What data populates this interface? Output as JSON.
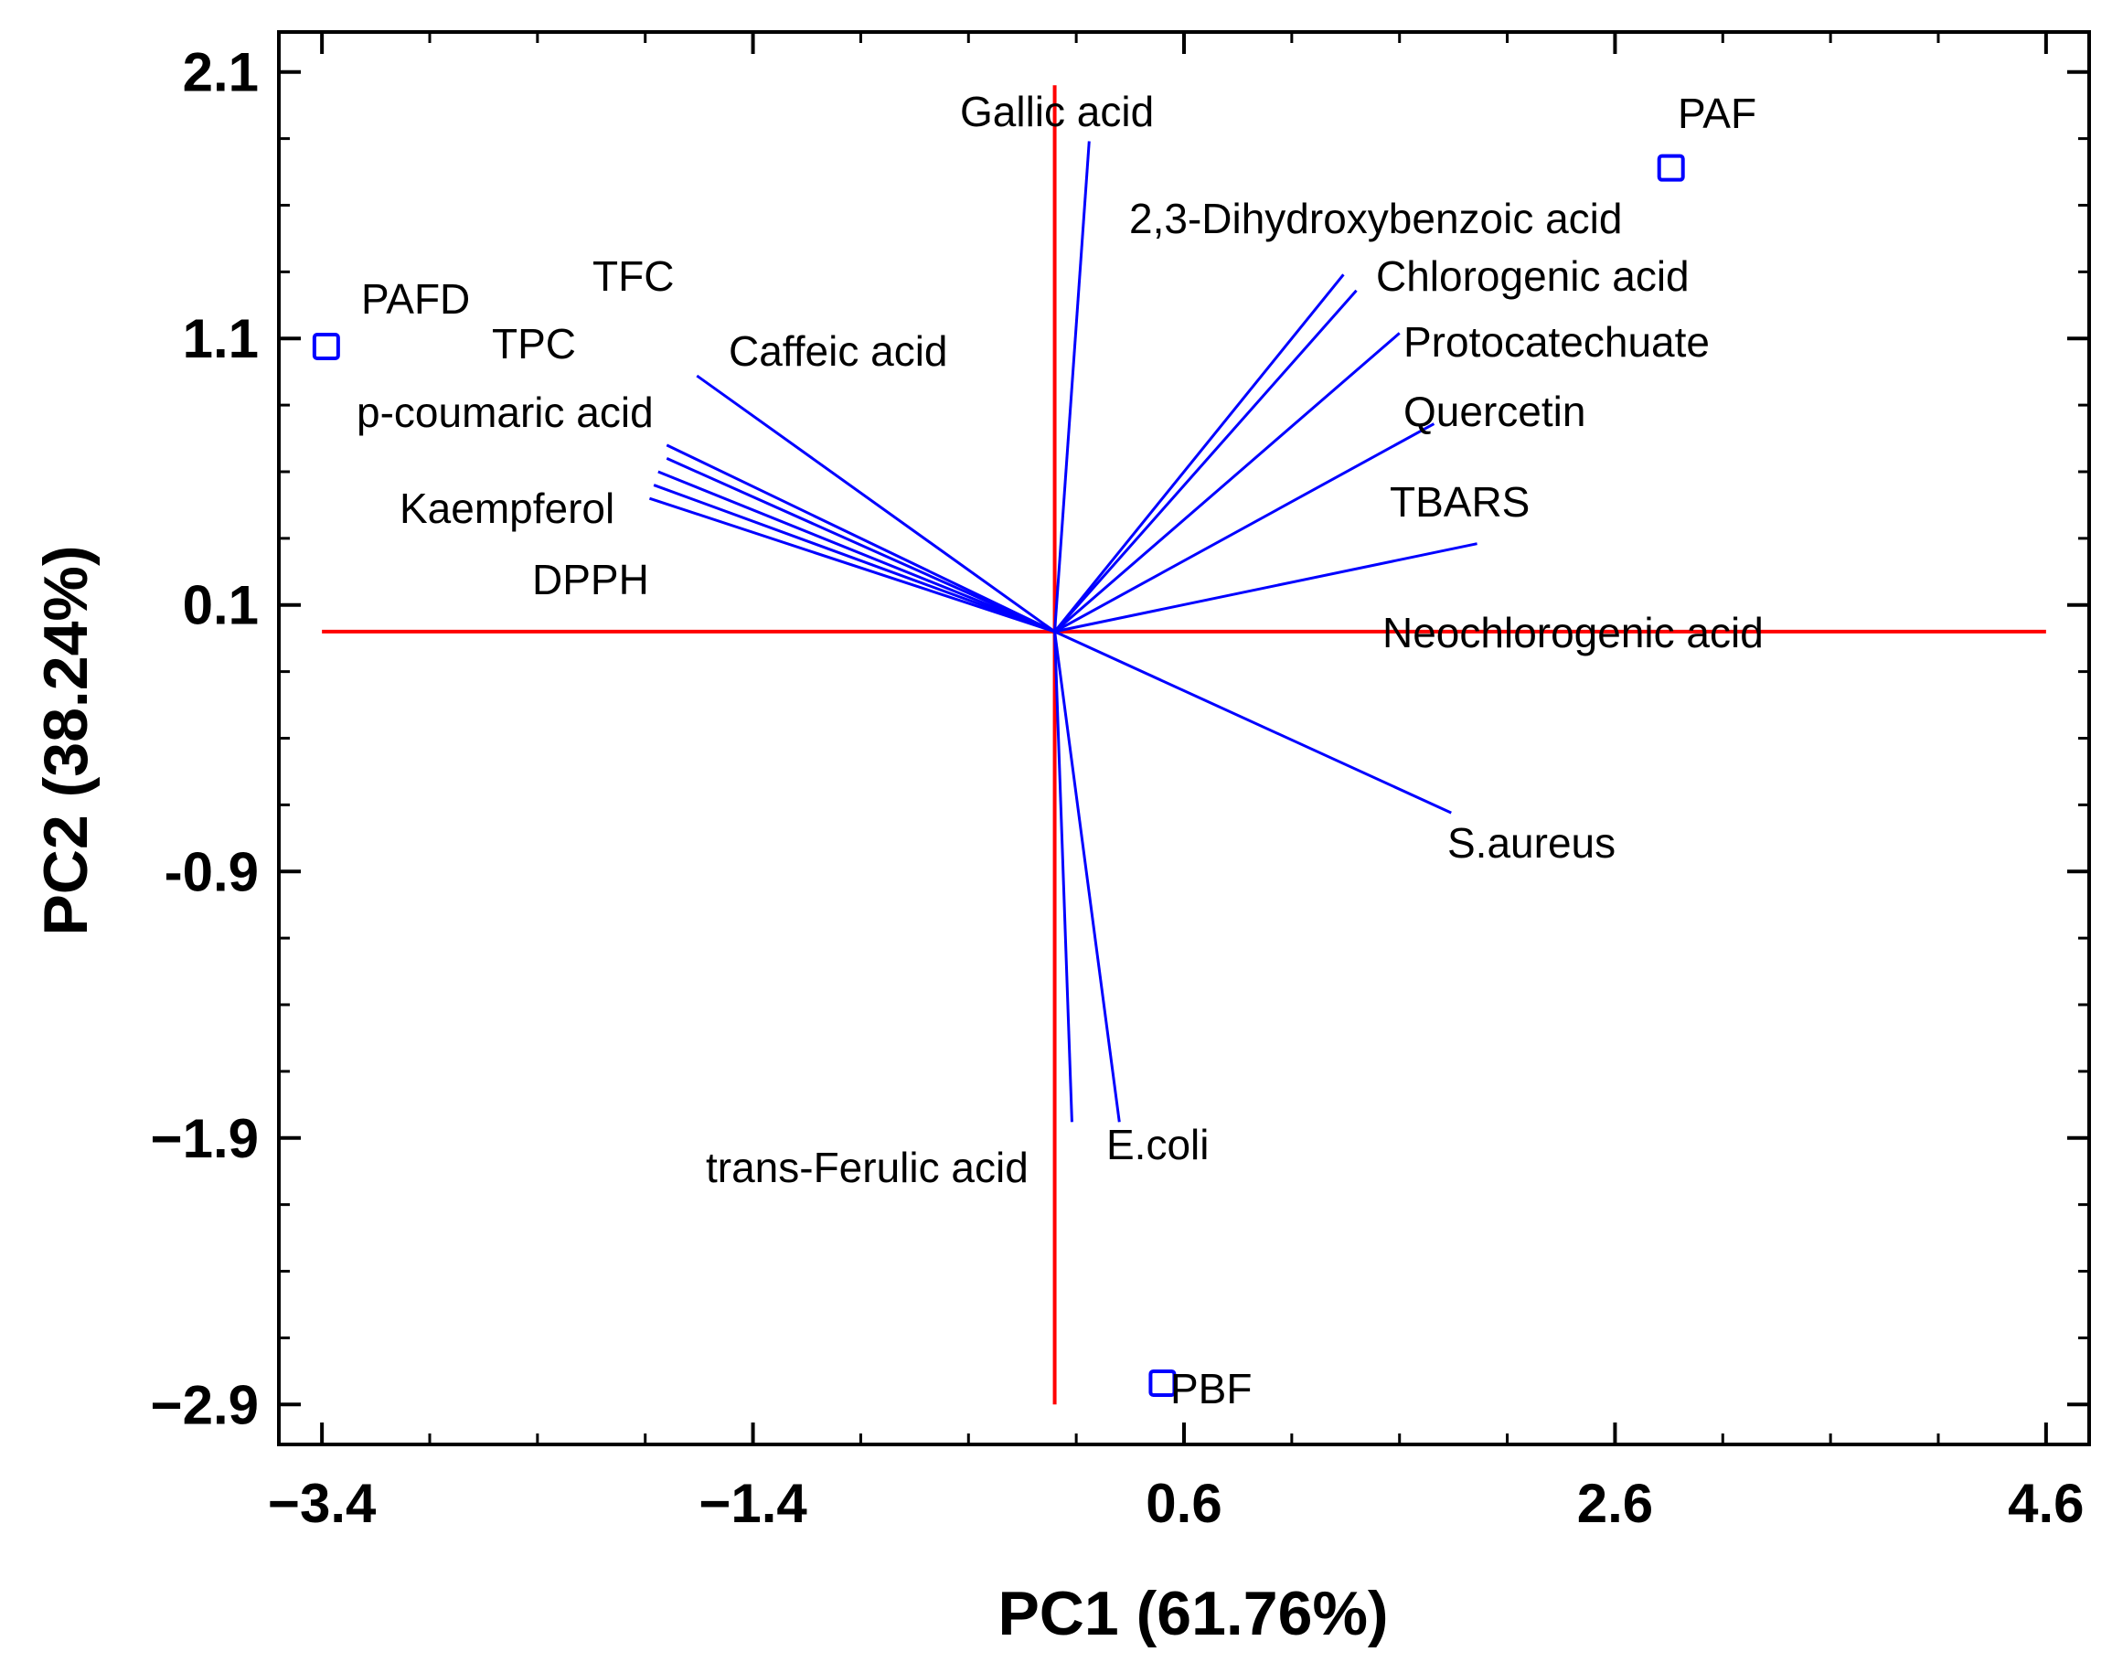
{
  "chart_data": {
    "type": "scatter",
    "subtype": "pca-biplot",
    "xlabel": "PC1 (61.76%)",
    "ylabel": "PC2 (38.24%)",
    "xlim": [
      -3.6,
      4.8
    ],
    "ylim": [
      -3.05,
      2.25
    ],
    "xticks": [
      -3.4,
      -1.4,
      0.6,
      2.6,
      4.6
    ],
    "xtick_labels": [
      "−3.4",
      "−1.4",
      "0.6",
      "2.6",
      "4.6"
    ],
    "yticks": [
      2.1,
      1.1,
      0.1,
      -0.9,
      -1.9,
      -2.9
    ],
    "ytick_labels": [
      "2.1",
      "1.1",
      "0.1",
      "-0.9",
      "−1.9",
      "−2.9"
    ],
    "reference_lines": {
      "color": "#ff0000",
      "x_range": [
        -3.4,
        4.6
      ],
      "y_range": [
        -2.9,
        2.05
      ]
    },
    "vector_color": "#0000ff",
    "observations": [
      {
        "name": "PAFD",
        "x": -3.38,
        "y": 1.07
      },
      {
        "name": "PAF",
        "x": 2.86,
        "y": 1.74
      },
      {
        "name": "PBF",
        "x": 0.5,
        "y": -2.82
      }
    ],
    "loadings": [
      {
        "name": "Gallic acid",
        "x": 0.16,
        "y": 1.84
      },
      {
        "name": "2,3-Dihydroxybenzoic acid",
        "x": 1.34,
        "y": 1.34
      },
      {
        "name": "Chlorogenic acid",
        "x": 1.4,
        "y": 1.28
      },
      {
        "name": "Protocatechuate",
        "x": 1.6,
        "y": 1.12
      },
      {
        "name": "Quercetin",
        "x": 1.76,
        "y": 0.78
      },
      {
        "name": "TBARS",
        "x": 1.96,
        "y": 0.33
      },
      {
        "name": "Neochlorogenic acid",
        "x": 0.0,
        "y": 0.0
      },
      {
        "name": "S.aureus",
        "x": 1.84,
        "y": -0.68
      },
      {
        "name": "E.coli",
        "x": 0.3,
        "y": -1.84
      },
      {
        "name": "trans-Ferulic acid",
        "x": 0.08,
        "y": -1.84
      },
      {
        "name": "Caffeic acid",
        "x": -1.66,
        "y": 0.96
      },
      {
        "name": "TFC",
        "x": -1.8,
        "y": 0.7
      },
      {
        "name": "TPC",
        "x": -1.8,
        "y": 0.65
      },
      {
        "name": "p-coumaric acid",
        "x": -1.84,
        "y": 0.6
      },
      {
        "name": "Kaempferol",
        "x": -1.86,
        "y": 0.55
      },
      {
        "name": "DPPH",
        "x": -1.88,
        "y": 0.5
      }
    ]
  }
}
